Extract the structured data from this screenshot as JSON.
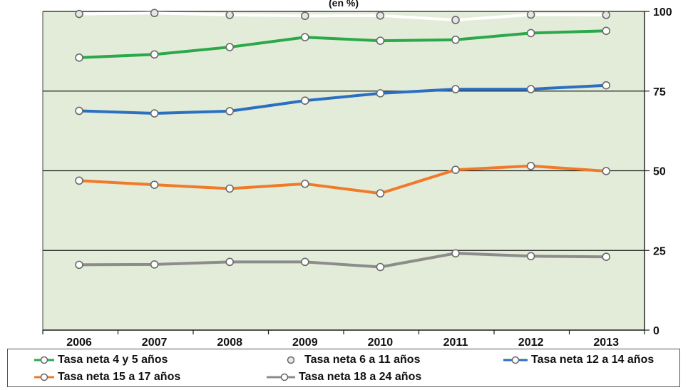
{
  "chart_data": {
    "type": "line",
    "title": "",
    "title_fragment": "(en %)",
    "xlabel": "",
    "ylabel": "",
    "x": [
      "2006",
      "2007",
      "2008",
      "2009",
      "2010",
      "2011",
      "2012",
      "2013"
    ],
    "ylim": [
      0,
      100
    ],
    "yticks": [
      0,
      25,
      50,
      75,
      100
    ],
    "y_axis_side": "right",
    "grid": "horizontal",
    "plot_background": "#e3ecd8",
    "legend_position": "bottom",
    "series": [
      {
        "name": "Tasa neta 4 y 5 años",
        "color": "#2aa84a",
        "values": [
          85.5,
          86.5,
          88.8,
          91.9,
          90.8,
          91.1,
          93.2,
          93.9
        ]
      },
      {
        "name": "Tasa neta 6 a 11 años",
        "color": "#ffffff",
        "values": [
          99.2,
          99.5,
          98.9,
          98.6,
          98.7,
          97.3,
          99.0,
          98.9
        ]
      },
      {
        "name": "Tasa neta 12 a 14 años",
        "color": "#2b6fc2",
        "values": [
          68.8,
          68.0,
          68.7,
          72.0,
          74.3,
          75.6,
          75.6,
          76.8
        ]
      },
      {
        "name": "Tasa neta 15 a 17 años",
        "color": "#f07a2a",
        "values": [
          46.9,
          45.6,
          44.4,
          45.9,
          42.9,
          50.3,
          51.5,
          49.9
        ]
      },
      {
        "name": "Tasa neta 18 a 24 años",
        "color": "#8c8c8c",
        "values": [
          20.5,
          20.6,
          21.4,
          21.4,
          19.8,
          24.1,
          23.2,
          23.0
        ]
      }
    ]
  }
}
